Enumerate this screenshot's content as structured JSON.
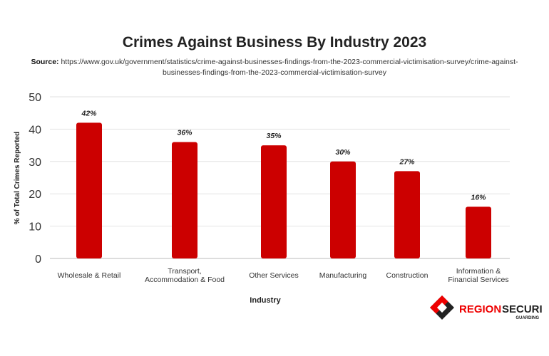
{
  "chart_data": {
    "type": "bar",
    "title": "Crimes Against Business By Industry 2023",
    "source_label": "Source:",
    "source_url": "https://www.gov.uk/government/statistics/crime-against-businesses-findings-from-the-2023-commercial-victimisation-survey/crime-against-businesses-findings-from-the-2023-commercial-victimisation-survey",
    "categories": [
      [
        "Wholesale & Retail"
      ],
      [
        "Transport,",
        "Accommodation & Food"
      ],
      [
        "Other Services"
      ],
      [
        "Manufacturing"
      ],
      [
        "Construction"
      ],
      [
        "Information &",
        "Financial Services"
      ]
    ],
    "values": [
      42,
      36,
      35,
      30,
      27,
      16
    ],
    "data_labels": [
      "42%",
      "36%",
      "35%",
      "30%",
      "27%",
      "16%"
    ],
    "xlabel": "Industry",
    "ylabel": "% of Total Crimes Reported",
    "ylim": [
      0,
      50
    ],
    "yticks": [
      0,
      10,
      20,
      30,
      40,
      50
    ],
    "grid": true,
    "bar_color": "#cc0000"
  },
  "logo": {
    "name": "REGION SECURITY",
    "sub": "GUARDING",
    "red_word": "REGION",
    "dark_word": "SECURITY"
  }
}
